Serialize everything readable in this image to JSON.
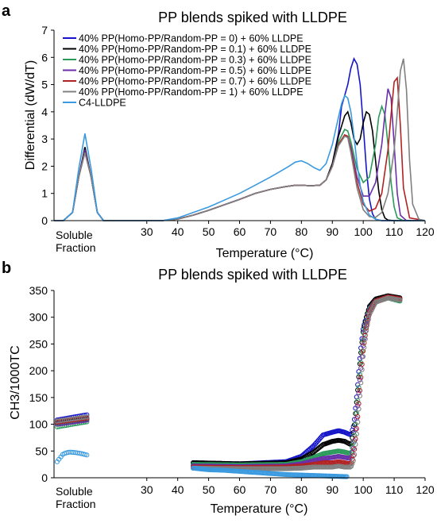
{
  "chart_data": [
    {
      "panel_label": "a",
      "type": "line",
      "title": "PP blends spiked with LLDPE",
      "xlabel": "Temperature (°C)",
      "ylabel": "Differential (dW/dT)",
      "xlim": [
        0,
        120
      ],
      "ylim": [
        0,
        7
      ],
      "x_ticks": [
        30,
        40,
        50,
        60,
        70,
        80,
        90,
        100,
        110,
        120
      ],
      "y_ticks": [
        0,
        1,
        2,
        3,
        4,
        5,
        6,
        7
      ],
      "soluble_label_1": "Soluble",
      "soluble_label_2": "Fraction",
      "legend_position": "top-left",
      "series": [
        {
          "name": "40% PP(Homo-PP/Random-PP = 0) + 60% LLDPE",
          "color": "#1515c8",
          "x": [
            0,
            3,
            6,
            8,
            10,
            12,
            14,
            16,
            30,
            35,
            40,
            45,
            50,
            55,
            60,
            65,
            70,
            75,
            78,
            80,
            83,
            86,
            88,
            90,
            92,
            93,
            94,
            95,
            96,
            97,
            98,
            99,
            100,
            101,
            102,
            103,
            104,
            106,
            110,
            120
          ],
          "y": [
            0,
            0,
            0.3,
            1.6,
            2.7,
            1.6,
            0.3,
            0,
            0,
            0,
            0.06,
            0.2,
            0.38,
            0.58,
            0.78,
            1.0,
            1.15,
            1.25,
            1.3,
            1.3,
            1.28,
            1.3,
            1.5,
            2.1,
            3.2,
            4.2,
            4.6,
            5.0,
            5.6,
            5.95,
            5.75,
            5.0,
            3.5,
            1.9,
            0.8,
            0.25,
            0.05,
            0,
            0,
            0
          ]
        },
        {
          "name": "40% PP(Homo-PP/Random-PP = 0.1) + 60% LLDPE",
          "color": "#000000",
          "x": [
            0,
            3,
            6,
            8,
            10,
            12,
            14,
            16,
            30,
            35,
            40,
            45,
            50,
            55,
            60,
            65,
            70,
            75,
            78,
            80,
            83,
            86,
            88,
            90,
            92,
            94,
            95,
            96,
            97,
            98,
            99,
            100,
            101,
            102,
            103,
            104,
            105,
            106,
            107,
            108,
            110,
            120
          ],
          "y": [
            0,
            0,
            0.3,
            1.6,
            2.7,
            1.6,
            0.3,
            0,
            0,
            0,
            0.06,
            0.2,
            0.38,
            0.58,
            0.78,
            1.0,
            1.15,
            1.25,
            1.3,
            1.3,
            1.28,
            1.3,
            1.5,
            2.1,
            3.1,
            3.85,
            4.0,
            3.6,
            3.0,
            2.8,
            3.0,
            3.6,
            4.0,
            3.9,
            3.3,
            2.2,
            1.1,
            0.4,
            0.1,
            0.02,
            0,
            0
          ]
        },
        {
          "name": "40% PP(Homo-PP/Random-PP = 0.3) + 60% LLDPE",
          "color": "#2a9a5a",
          "x": [
            0,
            3,
            6,
            8,
            10,
            12,
            14,
            16,
            30,
            35,
            40,
            45,
            50,
            55,
            60,
            65,
            70,
            75,
            78,
            80,
            83,
            86,
            88,
            90,
            92,
            94,
            95,
            96,
            98,
            100,
            102,
            104,
            105,
            106,
            107,
            108,
            109,
            110,
            111,
            113,
            120
          ],
          "y": [
            0,
            0,
            0.3,
            1.6,
            2.6,
            1.6,
            0.3,
            0,
            0,
            0,
            0.06,
            0.2,
            0.38,
            0.58,
            0.78,
            1.0,
            1.15,
            1.25,
            1.3,
            1.3,
            1.28,
            1.3,
            1.5,
            2.0,
            2.9,
            3.35,
            3.3,
            2.9,
            1.9,
            1.4,
            1.6,
            2.8,
            3.8,
            4.2,
            3.9,
            2.8,
            1.4,
            0.5,
            0.1,
            0,
            0
          ]
        },
        {
          "name": "40% PP(Homo-PP/Random-PP = 0.5) + 60% LLDPE",
          "color": "#6a2fa8",
          "x": [
            0,
            3,
            6,
            8,
            10,
            12,
            14,
            16,
            30,
            35,
            40,
            45,
            50,
            55,
            60,
            65,
            70,
            75,
            78,
            80,
            83,
            86,
            88,
            90,
            92,
            94,
            95,
            96,
            98,
            100,
            102,
            104,
            106,
            107,
            108,
            109,
            110,
            111,
            112,
            114,
            120
          ],
          "y": [
            0,
            0,
            0.3,
            1.6,
            2.6,
            1.6,
            0.3,
            0,
            0,
            0,
            0.06,
            0.2,
            0.38,
            0.58,
            0.78,
            1.0,
            1.15,
            1.25,
            1.3,
            1.3,
            1.28,
            1.3,
            1.5,
            2.0,
            2.8,
            3.15,
            3.1,
            2.7,
            1.6,
            0.9,
            0.9,
            1.4,
            2.8,
            3.9,
            4.85,
            4.5,
            2.8,
            1.0,
            0.2,
            0,
            0
          ]
        },
        {
          "name": "40% PP(Homo-PP/Random-PP = 0.7) + 60% LLDPE",
          "color": "#b22222",
          "x": [
            0,
            3,
            6,
            8,
            10,
            12,
            14,
            16,
            30,
            35,
            40,
            45,
            50,
            55,
            60,
            65,
            70,
            75,
            78,
            80,
            83,
            86,
            88,
            90,
            92,
            94,
            95,
            96,
            98,
            100,
            102,
            104,
            106,
            108,
            109,
            110,
            111,
            112,
            113,
            115,
            120
          ],
          "y": [
            0,
            0,
            0.3,
            1.6,
            2.5,
            1.6,
            0.3,
            0,
            0,
            0,
            0.06,
            0.2,
            0.38,
            0.58,
            0.78,
            1.0,
            1.15,
            1.25,
            1.3,
            1.3,
            1.28,
            1.3,
            1.5,
            2.0,
            2.8,
            3.15,
            3.1,
            2.6,
            1.4,
            0.6,
            0.35,
            0.45,
            1.0,
            2.6,
            3.9,
            5.1,
            5.25,
            3.5,
            1.2,
            0.1,
            0
          ]
        },
        {
          "name": "40% PP(Homo-PP/Random-PP = 1) + 60% LLDPE",
          "color": "#808080",
          "x": [
            0,
            3,
            6,
            8,
            10,
            12,
            14,
            16,
            30,
            35,
            40,
            45,
            50,
            55,
            60,
            65,
            70,
            75,
            78,
            80,
            83,
            86,
            88,
            90,
            92,
            94,
            95,
            96,
            98,
            100,
            102,
            104,
            106,
            108,
            110,
            111,
            112,
            113,
            114,
            115,
            116,
            118,
            120
          ],
          "y": [
            0,
            0,
            0.3,
            1.6,
            2.5,
            1.6,
            0.3,
            0,
            0,
            0,
            0.06,
            0.2,
            0.38,
            0.58,
            0.78,
            1.0,
            1.15,
            1.25,
            1.3,
            1.3,
            1.28,
            1.3,
            1.5,
            2.0,
            2.75,
            3.1,
            3.05,
            2.5,
            1.2,
            0.4,
            0.15,
            0.12,
            0.3,
            1.0,
            2.6,
            4.0,
            5.5,
            5.95,
            4.8,
            2.2,
            0.6,
            0.05,
            0
          ]
        },
        {
          "name": "C4-LLDPE",
          "color": "#3a9ae0",
          "x": [
            0,
            3,
            6,
            8,
            10,
            12,
            14,
            16,
            30,
            35,
            40,
            45,
            50,
            55,
            60,
            65,
            70,
            73,
            76,
            78,
            80,
            82,
            84,
            86,
            88,
            90,
            92,
            93,
            94,
            95,
            96,
            97,
            98,
            99,
            100,
            102,
            104,
            106,
            110,
            120
          ],
          "y": [
            0,
            0,
            0.3,
            1.9,
            3.2,
            1.9,
            0.3,
            0,
            0,
            0,
            0.1,
            0.3,
            0.5,
            0.75,
            1.0,
            1.3,
            1.6,
            1.8,
            2.0,
            2.15,
            2.2,
            2.1,
            1.95,
            1.85,
            2.1,
            2.8,
            3.8,
            4.3,
            4.6,
            4.5,
            4.0,
            3.1,
            2.1,
            1.3,
            0.7,
            0.2,
            0.05,
            0,
            0,
            0
          ]
        }
      ]
    },
    {
      "panel_label": "b",
      "type": "scatter",
      "title": "PP blends spiked with LLDPE",
      "xlabel": "Temperature (°C)",
      "ylabel": "CH3/1000TC",
      "xlim": [
        0,
        120
      ],
      "ylim": [
        0,
        350
      ],
      "x_ticks": [
        30,
        40,
        50,
        60,
        70,
        80,
        90,
        100,
        110,
        120
      ],
      "y_ticks": [
        0,
        50,
        100,
        150,
        200,
        250,
        300,
        350
      ],
      "soluble_label_1": "Soluble",
      "soluble_label_2": "Fraction",
      "series": [
        {
          "color": "#1515c8",
          "sol_x": [
            1,
            11
          ],
          "sol_y": [
            108,
            118
          ],
          "x": [
            45,
            60,
            75,
            80,
            84,
            87,
            90,
            92,
            94,
            96,
            97,
            98,
            99,
            100,
            101,
            102,
            104,
            108,
            112
          ],
          "y": [
            28,
            26,
            30,
            40,
            60,
            80,
            85,
            88,
            85,
            80,
            100,
            160,
            230,
            280,
            300,
            318,
            330,
            338,
            332
          ]
        },
        {
          "color": "#000000",
          "sol_x": [
            1,
            11
          ],
          "sol_y": [
            102,
            110
          ],
          "x": [
            45,
            60,
            75,
            80,
            84,
            87,
            90,
            92,
            94,
            96,
            97,
            98,
            99,
            100,
            101,
            102,
            104,
            108,
            112
          ],
          "y": [
            28,
            26,
            28,
            35,
            48,
            62,
            68,
            70,
            68,
            62,
            90,
            150,
            220,
            275,
            300,
            320,
            334,
            340,
            336
          ]
        },
        {
          "color": "#2a9a5a",
          "sol_x": [
            1,
            11
          ],
          "sol_y": [
            95,
            105
          ],
          "x": [
            45,
            60,
            75,
            80,
            84,
            87,
            90,
            92,
            94,
            96,
            97,
            98,
            99,
            100,
            101,
            102,
            104,
            108,
            112
          ],
          "y": [
            25,
            24,
            25,
            30,
            38,
            45,
            48,
            50,
            48,
            45,
            70,
            130,
            200,
            260,
            290,
            315,
            330,
            336,
            330
          ]
        },
        {
          "color": "#6a2fa8",
          "sol_x": [
            1,
            11
          ],
          "sol_y": [
            100,
            108
          ],
          "x": [
            45,
            60,
            75,
            80,
            84,
            87,
            90,
            92,
            94,
            96,
            97,
            98,
            99,
            100,
            101,
            102,
            104,
            108,
            112
          ],
          "y": [
            22,
            21,
            22,
            26,
            32,
            36,
            38,
            40,
            38,
            36,
            60,
            120,
            190,
            250,
            285,
            312,
            330,
            338,
            334
          ]
        },
        {
          "color": "#b22222",
          "sol_x": [
            1,
            11
          ],
          "sol_y": [
            104,
            112
          ],
          "x": [
            45,
            60,
            75,
            80,
            84,
            87,
            90,
            92,
            94,
            96,
            97,
            98,
            99,
            100,
            101,
            102,
            104,
            108,
            112
          ],
          "y": [
            20,
            19,
            20,
            22,
            25,
            28,
            28,
            30,
            28,
            26,
            45,
            100,
            170,
            240,
            280,
            310,
            330,
            338,
            334
          ]
        },
        {
          "color": "#808080",
          "sol_x": [
            1,
            11
          ],
          "sol_y": [
            106,
            114
          ],
          "x": [
            45,
            60,
            75,
            80,
            84,
            87,
            90,
            92,
            94,
            96,
            97,
            98,
            99,
            100,
            101,
            102,
            104,
            108,
            112
          ],
          "y": [
            18,
            17,
            17,
            18,
            20,
            20,
            20,
            22,
            20,
            20,
            35,
            90,
            160,
            230,
            275,
            305,
            328,
            336,
            332
          ]
        },
        {
          "color": "#3a9ae0",
          "sol_x": [
            1,
            3,
            5,
            7,
            9,
            11
          ],
          "sol_y": [
            30,
            45,
            48,
            47,
            45,
            42
          ],
          "x": [
            45,
            50,
            55,
            60,
            65,
            70,
            75,
            80,
            85,
            90,
            95
          ],
          "y": [
            18,
            15,
            14,
            12,
            10,
            8,
            6,
            5,
            4,
            3,
            2
          ]
        }
      ]
    }
  ]
}
